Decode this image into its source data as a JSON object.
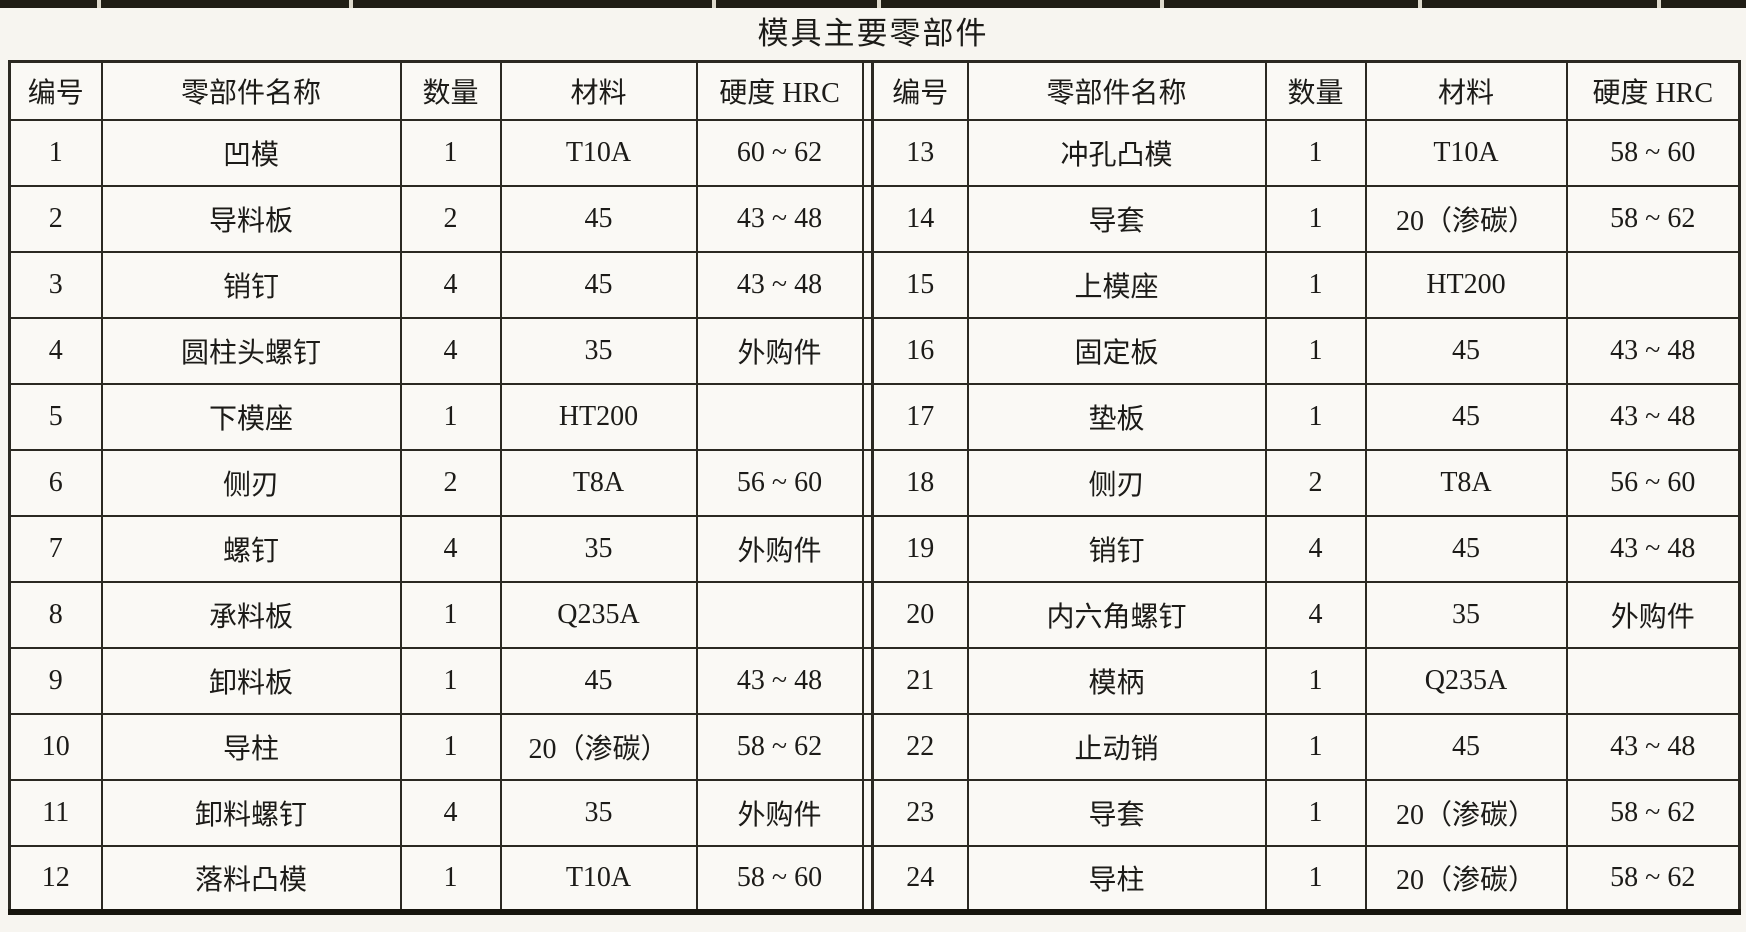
{
  "page": {
    "background": "#f7f5f0",
    "top_bar_color": "#201d15",
    "border_color": "#2b2922",
    "text_color": "#1c1b18"
  },
  "title": "模具主要零部件",
  "table": {
    "headers": [
      "编号",
      "零部件名称",
      "数量",
      "材料",
      "硬度 HRC"
    ],
    "column_names": [
      "part-number",
      "part-name",
      "quantity",
      "material",
      "hardness-hrc"
    ],
    "left_rows": [
      [
        "1",
        "凹模",
        "1",
        "T10A",
        "60 ~ 62"
      ],
      [
        "2",
        "导料板",
        "2",
        "45",
        "43 ~ 48"
      ],
      [
        "3",
        "销钉",
        "4",
        "45",
        "43 ~ 48"
      ],
      [
        "4",
        "圆柱头螺钉",
        "4",
        "35",
        "外购件"
      ],
      [
        "5",
        "下模座",
        "1",
        "HT200",
        ""
      ],
      [
        "6",
        "侧刃",
        "2",
        "T8A",
        "56 ~ 60"
      ],
      [
        "7",
        "螺钉",
        "4",
        "35",
        "外购件"
      ],
      [
        "8",
        "承料板",
        "1",
        "Q235A",
        ""
      ],
      [
        "9",
        "卸料板",
        "1",
        "45",
        "43 ~ 48"
      ],
      [
        "10",
        "导柱",
        "1",
        "20（渗碳）",
        "58 ~ 62"
      ],
      [
        "11",
        "卸料螺钉",
        "4",
        "35",
        "外购件"
      ],
      [
        "12",
        "落料凸模",
        "1",
        "T10A",
        "58 ~ 60"
      ]
    ],
    "right_rows": [
      [
        "13",
        "冲孔凸模",
        "1",
        "T10A",
        "58 ~ 60"
      ],
      [
        "14",
        "导套",
        "1",
        "20（渗碳）",
        "58 ~ 62"
      ],
      [
        "15",
        "上模座",
        "1",
        "HT200",
        ""
      ],
      [
        "16",
        "固定板",
        "1",
        "45",
        "43 ~ 48"
      ],
      [
        "17",
        "垫板",
        "1",
        "45",
        "43 ~ 48"
      ],
      [
        "18",
        "侧刃",
        "2",
        "T8A",
        "56 ~ 60"
      ],
      [
        "19",
        "销钉",
        "4",
        "45",
        "43 ~ 48"
      ],
      [
        "20",
        "内六角螺钉",
        "4",
        "35",
        "外购件"
      ],
      [
        "21",
        "模柄",
        "1",
        "Q235A",
        ""
      ],
      [
        "22",
        "止动销",
        "1",
        "45",
        "43 ~ 48"
      ],
      [
        "23",
        "导套",
        "1",
        "20（渗碳）",
        "58 ~ 62"
      ],
      [
        "24",
        "导柱",
        "1",
        "20（渗碳）",
        "58 ~ 62"
      ]
    ]
  }
}
